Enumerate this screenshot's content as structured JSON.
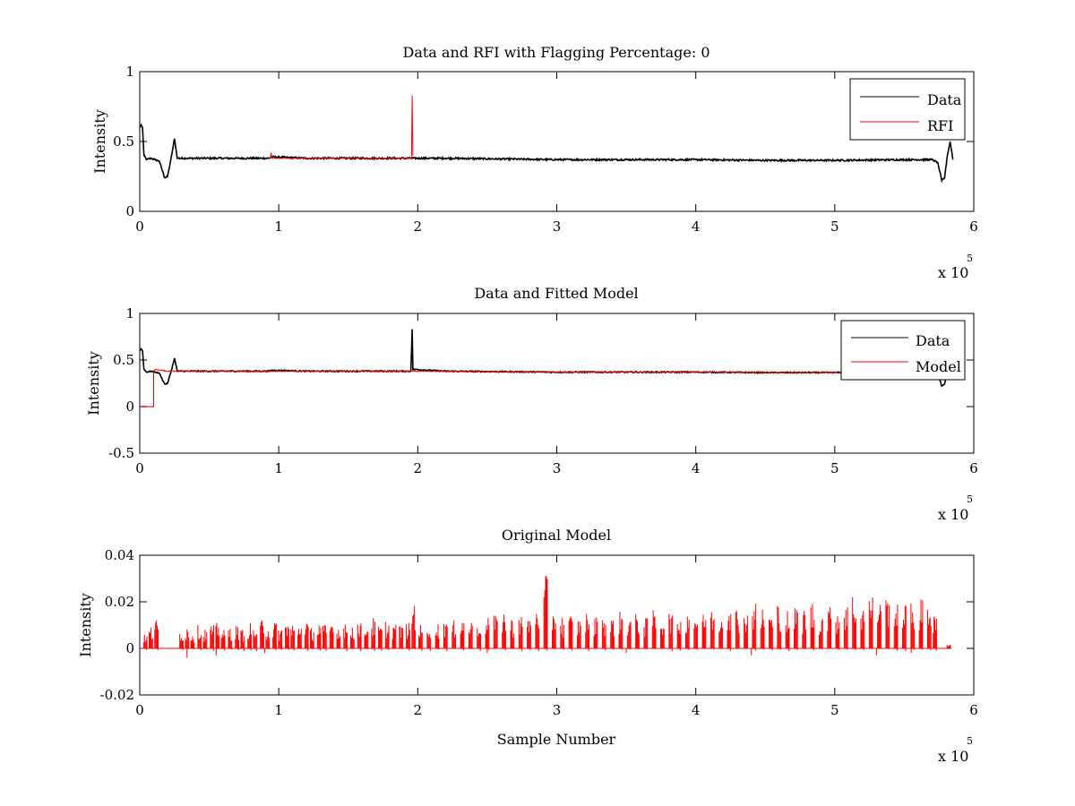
{
  "chart_data": [
    {
      "type": "line",
      "title": "Data and RFI with Flagging Percentage: 0",
      "xlabel": "",
      "ylabel": "Intensity",
      "xlim": [
        0,
        6
      ],
      "ylim": [
        0,
        1
      ],
      "xticks": [
        0,
        1,
        2,
        3,
        4,
        5,
        6
      ],
      "yticks": [
        0,
        0.5,
        1
      ],
      "xtick_labels": [
        "0",
        "1",
        "2",
        "3",
        "4",
        "5",
        "6"
      ],
      "ytick_labels": [
        "0",
        "0.5",
        "1"
      ],
      "x_exponent": {
        "base": "x 10",
        "power": "5"
      },
      "grid": false,
      "legend_position": "top-right",
      "series": [
        {
          "name": "Data",
          "color": "#000000",
          "points": [
            [
              0.0,
              0.6
            ],
            [
              0.01,
              0.62
            ],
            [
              0.02,
              0.6
            ],
            [
              0.03,
              0.4
            ],
            [
              0.05,
              0.37
            ],
            [
              0.08,
              0.38
            ],
            [
              0.11,
              0.37
            ],
            [
              0.14,
              0.36
            ],
            [
              0.16,
              0.3
            ],
            [
              0.18,
              0.24
            ],
            [
              0.2,
              0.25
            ],
            [
              0.22,
              0.35
            ],
            [
              0.24,
              0.46
            ],
            [
              0.25,
              0.52
            ],
            [
              0.27,
              0.38
            ],
            [
              0.35,
              0.38
            ],
            [
              0.5,
              0.38
            ],
            [
              0.7,
              0.38
            ],
            [
              0.93,
              0.38
            ],
            [
              0.95,
              0.39
            ],
            [
              1.2,
              0.38
            ],
            [
              1.5,
              0.38
            ],
            [
              1.8,
              0.38
            ],
            [
              1.95,
              0.38
            ],
            [
              2.2,
              0.38
            ],
            [
              2.6,
              0.375
            ],
            [
              3.0,
              0.37
            ],
            [
              3.5,
              0.37
            ],
            [
              4.0,
              0.37
            ],
            [
              4.5,
              0.365
            ],
            [
              5.0,
              0.365
            ],
            [
              5.5,
              0.37
            ],
            [
              5.7,
              0.37
            ],
            [
              5.74,
              0.35
            ],
            [
              5.77,
              0.22
            ],
            [
              5.79,
              0.24
            ],
            [
              5.81,
              0.4
            ],
            [
              5.83,
              0.5
            ],
            [
              5.85,
              0.37
            ]
          ],
          "jitter": 0.012
        },
        {
          "name": "RFI",
          "color": "#ff0000",
          "points": [
            [
              0.94,
              0.38
            ],
            [
              0.945,
              0.42
            ],
            [
              0.95,
              0.38
            ],
            [
              1.955,
              0.38
            ],
            [
              1.96,
              0.83
            ],
            [
              1.965,
              0.4
            ]
          ]
        }
      ]
    },
    {
      "type": "line",
      "title": "Data and Fitted Model",
      "xlabel": "",
      "ylabel": "Intensity",
      "xlim": [
        0,
        6
      ],
      "ylim": [
        -0.5,
        1
      ],
      "xticks": [
        0,
        1,
        2,
        3,
        4,
        5,
        6
      ],
      "yticks": [
        -0.5,
        0,
        0.5,
        1
      ],
      "xtick_labels": [
        "0",
        "1",
        "2",
        "3",
        "4",
        "5",
        "6"
      ],
      "ytick_labels": [
        "-0.5",
        "0",
        "0.5",
        "1"
      ],
      "x_exponent": {
        "base": "x 10",
        "power": "5"
      },
      "grid": false,
      "legend_position": "top-right",
      "series": [
        {
          "name": "Data",
          "color": "#000000",
          "points": [
            [
              0.0,
              0.6
            ],
            [
              0.01,
              0.62
            ],
            [
              0.02,
              0.6
            ],
            [
              0.03,
              0.4
            ],
            [
              0.05,
              0.37
            ],
            [
              0.08,
              0.38
            ],
            [
              0.11,
              0.37
            ],
            [
              0.14,
              0.36
            ],
            [
              0.16,
              0.3
            ],
            [
              0.18,
              0.24
            ],
            [
              0.2,
              0.25
            ],
            [
              0.22,
              0.35
            ],
            [
              0.24,
              0.46
            ],
            [
              0.25,
              0.52
            ],
            [
              0.27,
              0.38
            ],
            [
              0.35,
              0.38
            ],
            [
              0.5,
              0.38
            ],
            [
              0.7,
              0.38
            ],
            [
              0.93,
              0.38
            ],
            [
              0.95,
              0.39
            ],
            [
              1.2,
              0.38
            ],
            [
              1.5,
              0.38
            ],
            [
              1.8,
              0.38
            ],
            [
              1.95,
              0.38
            ],
            [
              1.96,
              0.83
            ],
            [
              1.965,
              0.4
            ],
            [
              2.2,
              0.38
            ],
            [
              2.6,
              0.375
            ],
            [
              3.0,
              0.37
            ],
            [
              3.5,
              0.37
            ],
            [
              4.0,
              0.37
            ],
            [
              4.5,
              0.365
            ],
            [
              5.0,
              0.365
            ],
            [
              5.5,
              0.37
            ],
            [
              5.7,
              0.37
            ],
            [
              5.74,
              0.35
            ],
            [
              5.77,
              0.22
            ],
            [
              5.79,
              0.24
            ],
            [
              5.81,
              0.4
            ],
            [
              5.83,
              0.5
            ],
            [
              5.85,
              0.37
            ]
          ],
          "jitter": 0.012
        },
        {
          "name": "Model",
          "color": "#ff0000",
          "points": [
            [
              0.0,
              0.0
            ],
            [
              0.1,
              0.0
            ],
            [
              0.1,
              0.36
            ],
            [
              0.11,
              0.4
            ],
            [
              0.2,
              0.38
            ],
            [
              0.5,
              0.38
            ],
            [
              1.0,
              0.38
            ],
            [
              1.5,
              0.38
            ],
            [
              2.0,
              0.38
            ],
            [
              2.5,
              0.375
            ],
            [
              3.0,
              0.37
            ],
            [
              3.5,
              0.37
            ],
            [
              4.0,
              0.37
            ],
            [
              4.5,
              0.365
            ],
            [
              5.0,
              0.365
            ],
            [
              5.2,
              0.37
            ]
          ],
          "jitter": 0.01
        }
      ]
    },
    {
      "type": "line",
      "title": "Original Model",
      "xlabel": "Sample Number",
      "ylabel": "Intensity",
      "xlim": [
        0,
        6
      ],
      "ylim": [
        -0.02,
        0.04
      ],
      "xticks": [
        0,
        1,
        2,
        3,
        4,
        5,
        6
      ],
      "yticks": [
        -0.02,
        0,
        0.02,
        0.04
      ],
      "xtick_labels": [
        "0",
        "1",
        "2",
        "3",
        "4",
        "5",
        "6"
      ],
      "ytick_labels": [
        "-0.02",
        "0",
        "0.02",
        "0.04"
      ],
      "x_exponent": {
        "base": "x 10",
        "power": "5"
      },
      "grid": false,
      "legend_position": "none",
      "series": [
        {
          "color": "#ff0000",
          "spikes": [
            [
              0.04,
              0.006
            ],
            [
              0.08,
              0.009
            ],
            [
              0.12,
              0.012
            ],
            [
              0.3,
              0.008
            ],
            [
              0.34,
              0.009
            ],
            [
              0.38,
              0.007
            ],
            [
              0.43,
              0.01
            ],
            [
              0.47,
              0.008
            ],
            [
              0.52,
              0.01
            ],
            [
              0.56,
              0.011
            ],
            [
              0.6,
              0.008
            ],
            [
              0.65,
              0.009
            ],
            [
              0.7,
              0.01
            ],
            [
              0.74,
              0.008
            ],
            [
              0.79,
              0.011
            ],
            [
              0.83,
              0.009
            ],
            [
              0.88,
              0.012
            ],
            [
              0.92,
              0.01
            ],
            [
              0.97,
              0.011
            ],
            [
              1.01,
              0.009
            ],
            [
              1.06,
              0.012
            ],
            [
              1.1,
              0.01
            ],
            [
              1.15,
              0.011
            ],
            [
              1.2,
              0.012
            ],
            [
              1.24,
              0.009
            ],
            [
              1.29,
              0.011
            ],
            [
              1.33,
              0.01
            ],
            [
              1.38,
              0.012
            ],
            [
              1.43,
              0.009
            ],
            [
              1.48,
              0.011
            ],
            [
              1.53,
              0.01
            ],
            [
              1.58,
              0.012
            ],
            [
              1.63,
              0.011
            ],
            [
              1.68,
              0.013
            ],
            [
              1.73,
              0.01
            ],
            [
              1.78,
              0.012
            ],
            [
              1.83,
              0.011
            ],
            [
              1.88,
              0.01
            ],
            [
              1.93,
              0.011
            ],
            [
              1.97,
              0.021
            ],
            [
              2.02,
              0.01
            ],
            [
              2.08,
              0.012
            ],
            [
              2.14,
              0.011
            ],
            [
              2.2,
              0.013
            ],
            [
              2.26,
              0.012
            ],
            [
              2.32,
              0.014
            ],
            [
              2.38,
              0.012
            ],
            [
              2.44,
              0.013
            ],
            [
              2.5,
              0.015
            ],
            [
              2.56,
              0.014
            ],
            [
              2.62,
              0.016
            ],
            [
              2.68,
              0.013
            ],
            [
              2.74,
              0.015
            ],
            [
              2.8,
              0.014
            ],
            [
              2.86,
              0.02
            ],
            [
              2.92,
              0.031
            ],
            [
              2.98,
              0.018
            ],
            [
              3.04,
              0.013
            ],
            [
              3.1,
              0.014
            ],
            [
              3.16,
              0.013
            ],
            [
              3.22,
              0.016
            ],
            [
              3.28,
              0.014
            ],
            [
              3.34,
              0.015
            ],
            [
              3.4,
              0.013
            ],
            [
              3.46,
              0.016
            ],
            [
              3.52,
              0.014
            ],
            [
              3.58,
              0.015
            ],
            [
              3.64,
              0.013
            ],
            [
              3.7,
              0.017
            ],
            [
              3.76,
              0.014
            ],
            [
              3.82,
              0.016
            ],
            [
              3.88,
              0.015
            ],
            [
              3.94,
              0.018
            ],
            [
              4.0,
              0.016
            ],
            [
              4.06,
              0.015
            ],
            [
              4.12,
              0.017
            ],
            [
              4.18,
              0.016
            ],
            [
              4.24,
              0.022
            ],
            [
              4.3,
              0.018
            ],
            [
              4.36,
              0.016
            ],
            [
              4.42,
              0.02
            ],
            [
              4.48,
              0.017
            ],
            [
              4.54,
              0.015
            ],
            [
              4.6,
              0.02
            ],
            [
              4.66,
              0.016
            ],
            [
              4.72,
              0.018
            ],
            [
              4.78,
              0.017
            ],
            [
              4.84,
              0.019
            ],
            [
              4.9,
              0.016
            ],
            [
              4.96,
              0.018
            ],
            [
              5.02,
              0.017
            ],
            [
              5.08,
              0.02
            ],
            [
              5.14,
              0.024
            ],
            [
              5.2,
              0.02
            ],
            [
              5.26,
              0.023
            ],
            [
              5.32,
              0.021
            ],
            [
              5.38,
              0.022
            ],
            [
              5.44,
              0.019
            ],
            [
              5.5,
              0.022
            ],
            [
              5.56,
              0.02
            ],
            [
              5.62,
              0.021
            ],
            [
              5.68,
              0.022
            ],
            [
              5.72,
              0.014
            ],
            [
              5.82,
              0.002
            ]
          ],
          "dips": [
            [
              0.34,
              -0.004
            ],
            [
              0.55,
              -0.003
            ],
            [
              0.9,
              -0.002
            ],
            [
              2.5,
              -0.002
            ],
            [
              3.5,
              -0.002
            ],
            [
              4.4,
              -0.003
            ],
            [
              5.3,
              -0.003
            ],
            [
              5.55,
              -0.002
            ]
          ]
        }
      ]
    }
  ]
}
